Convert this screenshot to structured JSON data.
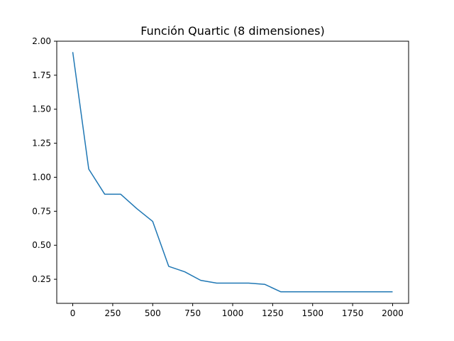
{
  "chart_data": {
    "type": "line",
    "title": "Función Quartic (8 dimensiones)",
    "xlabel": "",
    "ylabel": "",
    "xlim": [
      -100,
      2100
    ],
    "ylim": [
      0.073,
      2.0
    ],
    "x_ticks": [
      0,
      250,
      500,
      750,
      1000,
      1250,
      1500,
      1750,
      2000
    ],
    "x_tick_labels": [
      "0",
      "250",
      "500",
      "750",
      "1000",
      "1250",
      "1500",
      "1750",
      "2000"
    ],
    "y_ticks": [
      0.25,
      0.5,
      0.75,
      1.0,
      1.25,
      1.5,
      1.75,
      2.0
    ],
    "y_tick_labels": [
      "0.25",
      "0.50",
      "0.75",
      "1.00",
      "1.25",
      "1.50",
      "1.75",
      "2.00"
    ],
    "grid": false,
    "series": [
      {
        "color": "#1f77b4",
        "x": [
          0,
          100,
          200,
          300,
          400,
          500,
          600,
          700,
          800,
          900,
          1000,
          1100,
          1200,
          1300,
          1400,
          1500,
          1600,
          1700,
          1800,
          1900,
          2000
        ],
        "values": [
          1.92,
          1.06,
          0.875,
          0.875,
          0.77,
          0.675,
          0.345,
          0.305,
          0.242,
          0.222,
          0.222,
          0.222,
          0.213,
          0.158,
          0.158,
          0.158,
          0.158,
          0.158,
          0.158,
          0.158,
          0.158
        ]
      }
    ]
  }
}
